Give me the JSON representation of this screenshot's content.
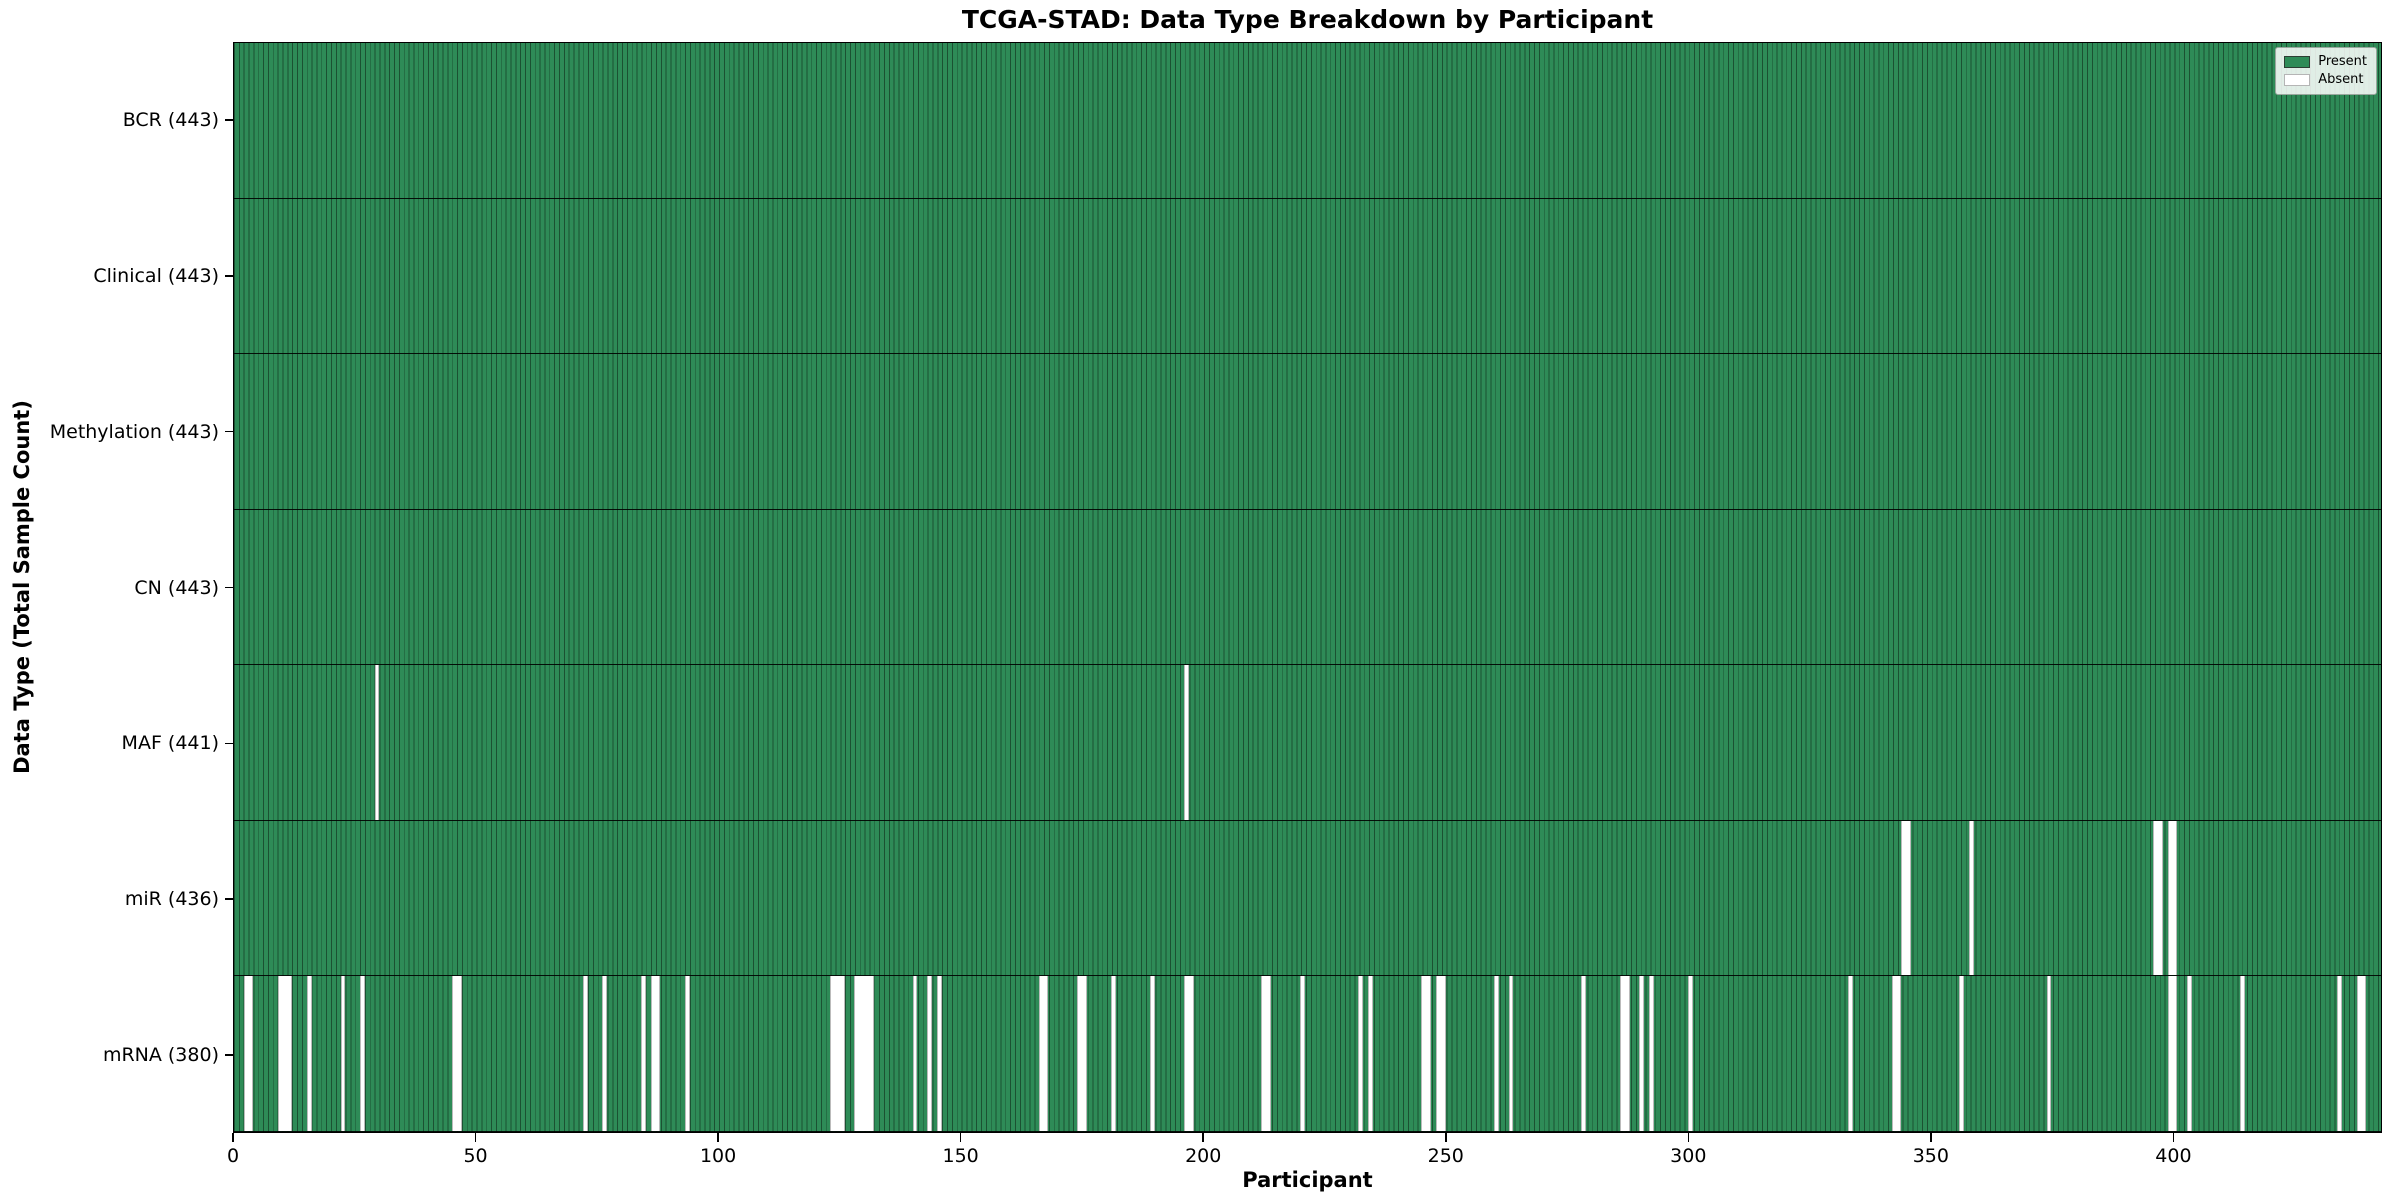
{
  "title": "TCGA-STAD: Data Type Breakdown by Participant",
  "xlabel": "Participant",
  "ylabel": "Data Type (Total Sample Count)",
  "legend": {
    "present_label": "Present",
    "absent_label": "Absent"
  },
  "colors": {
    "present": "#2E8B57",
    "absent": "#FFFFFF",
    "grid_line": "rgba(0,0,0,0.42)",
    "row_separator": "#000000"
  },
  "chart_data": {
    "type": "heatmap",
    "title": "TCGA-STAD: Data Type Breakdown by Participant",
    "xlabel": "Participant",
    "ylabel": "Data Type (Total Sample Count)",
    "legend_entries": [
      "Present",
      "Absent"
    ],
    "legend_position": "upper right",
    "n_participants": 443,
    "x_range": [
      0,
      443
    ],
    "x_ticks": [
      0,
      50,
      100,
      150,
      200,
      250,
      300,
      350,
      400
    ],
    "value_domain": [
      "present",
      "absent"
    ],
    "rows": [
      {
        "name": "BCR",
        "label": "BCR (443)",
        "total": 443,
        "absent_participants": []
      },
      {
        "name": "Clinical",
        "label": "Clinical (443)",
        "total": 443,
        "absent_participants": []
      },
      {
        "name": "Methylation",
        "label": "Methylation (443)",
        "total": 443,
        "absent_participants": []
      },
      {
        "name": "CN",
        "label": "CN (443)",
        "total": 443,
        "absent_participants": []
      },
      {
        "name": "MAF",
        "label": "MAF (441)",
        "total": 441,
        "absent_participants": [
          29,
          196
        ]
      },
      {
        "name": "miR",
        "label": "miR (436)",
        "total": 436,
        "absent_participants": [
          344,
          345,
          358,
          396,
          397,
          399,
          400
        ]
      },
      {
        "name": "mRNA",
        "label": "mRNA (380)",
        "total": 380,
        "absent_participants": [
          2,
          3,
          9,
          10,
          11,
          15,
          22,
          26,
          45,
          46,
          72,
          76,
          84,
          86,
          87,
          93,
          123,
          124,
          125,
          128,
          129,
          130,
          131,
          140,
          143,
          145,
          166,
          167,
          174,
          175,
          181,
          189,
          196,
          197,
          212,
          213,
          220,
          232,
          234,
          245,
          246,
          248,
          249,
          260,
          263,
          278,
          286,
          287,
          290,
          292,
          300,
          333,
          342,
          343,
          356,
          374,
          399,
          400,
          403,
          414,
          434,
          438,
          439
        ]
      }
    ]
  }
}
